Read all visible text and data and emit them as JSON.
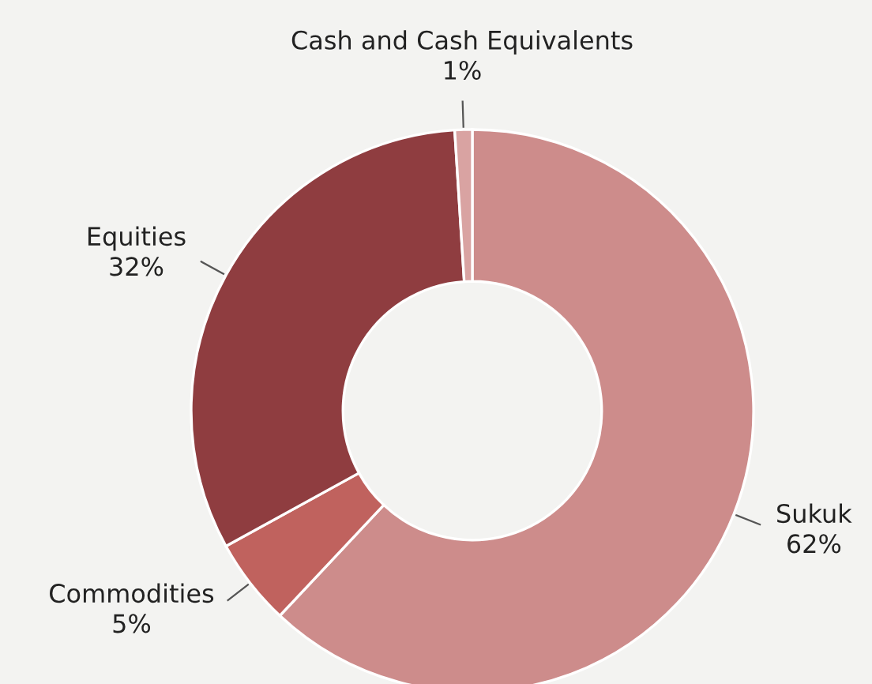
{
  "chart_data": {
    "type": "donut",
    "categories": [
      "Sukuk",
      "Commodities",
      "Equities",
      "Cash and Cash Equivalents"
    ],
    "values": [
      62,
      5,
      32,
      1
    ],
    "value_labels": [
      "62%",
      "5%",
      "32%",
      "1%"
    ],
    "colors": [
      "#cd8c8b",
      "#c0625e",
      "#8f3d40",
      "#d9a3a2"
    ]
  }
}
